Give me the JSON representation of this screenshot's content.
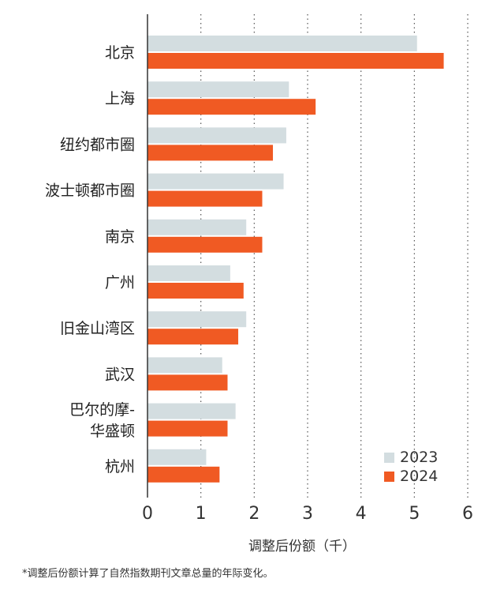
{
  "chart_data": {
    "type": "bar",
    "orientation": "horizontal",
    "categories": [
      "北京",
      "上海",
      "纽约都市圈",
      "波士顿都市圈",
      "南京",
      "广州",
      "旧金山湾区",
      "武汉",
      "巴尔的摩-华盛顿",
      "杭州"
    ],
    "category_lines": [
      [
        "北京"
      ],
      [
        "上海"
      ],
      [
        "纽约都市圈"
      ],
      [
        "波士顿都市圈"
      ],
      [
        "南京"
      ],
      [
        "广州"
      ],
      [
        "旧金山湾区"
      ],
      [
        "武汉"
      ],
      [
        "巴尔的摩-",
        "华盛顿"
      ],
      [
        "杭州"
      ]
    ],
    "series": [
      {
        "name": "2023",
        "color": "#d3dde0",
        "values": [
          5.05,
          2.65,
          2.6,
          2.55,
          1.85,
          1.55,
          1.85,
          1.4,
          1.65,
          1.1
        ]
      },
      {
        "name": "2024",
        "color": "#f05a23",
        "values": [
          5.55,
          3.15,
          2.35,
          2.15,
          2.15,
          1.8,
          1.7,
          1.5,
          1.5,
          1.35
        ]
      }
    ],
    "xlim": [
      0,
      6
    ],
    "xticks": [
      "0",
      "1",
      "2",
      "3",
      "4",
      "5",
      "6"
    ],
    "xlabel": "调整后份额（千）",
    "grid": "vertical-dotted",
    "legend_position": "bottom-right",
    "footnote": "*调整后份额计算了自然指数期刊文章总量的年际变化。"
  }
}
